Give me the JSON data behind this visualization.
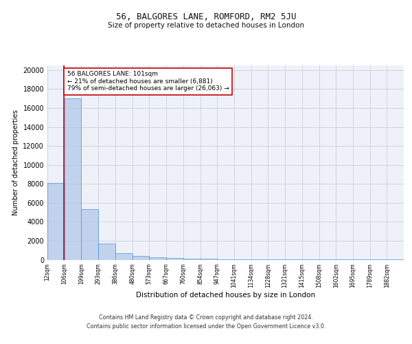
{
  "title1": "56, BALGORES LANE, ROMFORD, RM2 5JU",
  "title2": "Size of property relative to detached houses in London",
  "xlabel": "Distribution of detached houses by size in London",
  "ylabel": "Number of detached properties",
  "bar_values": [
    8100,
    17000,
    5300,
    1700,
    700,
    400,
    250,
    150,
    100,
    100,
    60,
    50,
    40,
    30,
    20,
    20,
    15,
    10,
    8,
    5,
    3
  ],
  "bin_edges": [
    12,
    106,
    199,
    293,
    386,
    480,
    573,
    667,
    760,
    854,
    947,
    1041,
    1134,
    1228,
    1321,
    1415,
    1508,
    1602,
    1695,
    1789,
    1882
  ],
  "x_tick_labels": [
    "12sqm",
    "106sqm",
    "199sqm",
    "293sqm",
    "386sqm",
    "480sqm",
    "573sqm",
    "667sqm",
    "760sqm",
    "854sqm",
    "947sqm",
    "1041sqm",
    "1134sqm",
    "1228sqm",
    "1321sqm",
    "1415sqm",
    "1508sqm",
    "1602sqm",
    "1695sqm",
    "1789sqm",
    "1882sqm"
  ],
  "bar_color": "#aec6e8",
  "bar_edge_color": "#4a90d9",
  "bar_alpha": 0.7,
  "red_line_x": 101,
  "annotation_title": "56 BALGORES LANE: 101sqm",
  "annotation_line1": "← 21% of detached houses are smaller (6,881)",
  "annotation_line2": "79% of semi-detached houses are larger (26,063) →",
  "annotation_box_color": "#ffffff",
  "annotation_box_edge": "#cc0000",
  "red_line_color": "#cc0000",
  "ylim": [
    0,
    20500
  ],
  "yticks": [
    0,
    2000,
    4000,
    6000,
    8000,
    10000,
    12000,
    14000,
    16000,
    18000,
    20000
  ],
  "grid_color": "#c0c8d8",
  "bg_color": "#eef2f8",
  "footer1": "Contains HM Land Registry data © Crown copyright and database right 2024.",
  "footer2": "Contains public sector information licensed under the Open Government Licence v3.0."
}
